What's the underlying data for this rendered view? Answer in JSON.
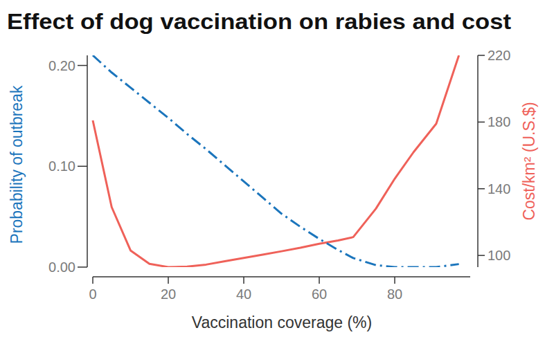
{
  "chart_data": {
    "type": "line",
    "title": "Effect of dog vaccination on rabies and cost",
    "x_label": "Vaccination coverage (%)",
    "y_label": "Probability of outbreak",
    "y2_label": "Cost/km² (U.S.$)",
    "x": [
      0,
      5,
      10,
      15,
      20,
      25,
      30,
      35,
      40,
      45,
      50,
      55,
      60,
      65,
      69,
      75,
      80,
      85,
      91,
      97
    ],
    "xlim": [
      0,
      100
    ],
    "xticks": [
      0,
      20,
      40,
      60,
      80
    ],
    "ylim": [
      0,
      0.21
    ],
    "yticks": [
      {
        "value": 0,
        "label": "0.00"
      },
      {
        "value": 0.1,
        "label": "0.10"
      },
      {
        "value": 0.2,
        "label": "0.20"
      }
    ],
    "y2lim": [
      93,
      220
    ],
    "y2ticks": [
      100,
      140,
      180,
      220
    ],
    "grid": false,
    "series": [
      {
        "color": "#1b75bc",
        "line_style": "dashdot",
        "values": [
          0.21,
          0.193,
          0.178,
          0.163,
          0.148,
          0.132,
          0.117,
          0.101,
          0.085,
          0.069,
          0.053,
          0.04,
          0.028,
          0.017,
          0.009,
          0.002,
          0,
          0,
          0,
          0.003
        ]
      },
      {
        "color": "#ef6159",
        "line_style": "solid",
        "axis": "y2",
        "values": [
          181,
          129,
          103,
          95,
          93,
          93.3,
          94.5,
          96.5,
          98.5,
          100.5,
          102.5,
          104.6,
          107,
          109,
          111,
          128,
          146,
          162,
          179,
          220
        ]
      }
    ]
  }
}
